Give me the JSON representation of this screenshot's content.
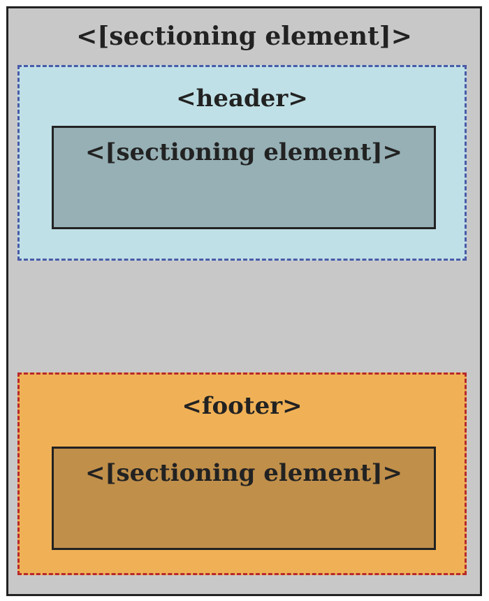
{
  "outer": {
    "label": "<[sectioning element]>"
  },
  "header": {
    "label": "<header>",
    "inner_label": "<[sectioning element]>"
  },
  "footer": {
    "label": "<footer>",
    "inner_label": "<[sectioning element]>"
  },
  "colors": {
    "outer_fill": "#c8c8c8",
    "outer_border": "#222222",
    "header_fill": "#bfe0e6",
    "header_border": "#4a5aa8",
    "header_inner_fill": "#96b0b5",
    "footer_fill": "#f0b156",
    "footer_border": "#b8282a",
    "footer_inner_fill": "#c08f4a",
    "text": "#222222"
  }
}
